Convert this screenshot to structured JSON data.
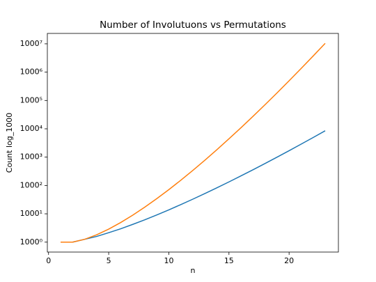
{
  "chart_data": {
    "type": "line",
    "title": "Number of Involutuons vs Permutations",
    "xlabel": "n",
    "ylabel": "Count log_1000",
    "x": [
      1,
      2,
      3,
      4,
      5,
      6,
      7,
      8,
      9,
      10,
      11,
      12,
      13,
      14,
      15,
      16,
      17,
      18,
      19,
      20,
      21,
      22,
      23
    ],
    "series": [
      {
        "color": "#1f77b4",
        "values": [
          1,
          1,
          2,
          4,
          10,
          26,
          76,
          232,
          764,
          2620,
          9496,
          35696,
          140152,
          568504,
          2390480,
          10349536,
          46206736,
          211799312,
          997313824,
          4809701440,
          23758664096,
          119952692896,
          618884638912
        ]
      },
      {
        "color": "#ff7f0e",
        "values": [
          1,
          1,
          2,
          6,
          24,
          120,
          720,
          5040,
          40320,
          362880,
          3628800,
          39916800,
          479001600,
          6227020800,
          87178291200,
          1307674368000,
          20922789888000,
          355687428096000,
          6402373705728000,
          121645100408832000,
          2432902008176640000,
          51090942171709440000,
          1124000727777607680000
        ]
      }
    ],
    "xlim": [
      -0.1,
      24.1
    ],
    "xticks": [
      0,
      5,
      10,
      15,
      20
    ],
    "yscale": "log",
    "log_base": 1000,
    "ylim": [
      0.089,
      1.26e+22
    ],
    "yticks": [
      {
        "value": 1,
        "label": "1000⁰"
      },
      {
        "value": 1000,
        "label": "1000¹"
      },
      {
        "value": 1000000,
        "label": "1000²"
      },
      {
        "value": 1000000000,
        "label": "1000³"
      },
      {
        "value": 1000000000000,
        "label": "1000⁴"
      },
      {
        "value": 1000000000000000,
        "label": "1000⁵"
      },
      {
        "value": 1000000000000000000,
        "label": "1000⁶"
      },
      {
        "value": 1e+21,
        "label": "1000⁷"
      }
    ]
  }
}
